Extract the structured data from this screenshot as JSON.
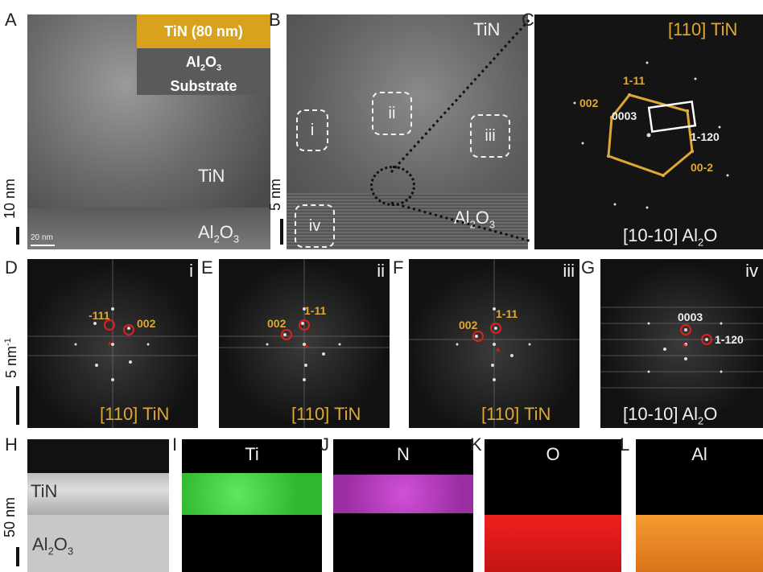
{
  "panels": {
    "A": {
      "letter": "A",
      "inset_top": "TiN (80 nm)",
      "inset_bottom_1": "Al",
      "inset_bottom_sub": "2",
      "inset_bottom_2": "O",
      "inset_bottom_sub2": "3",
      "inset_bottom_3": "Substrate",
      "tin": "TiN",
      "al": "Al",
      "al_sub": "2",
      "o": "O",
      "o_sub": "3",
      "scale_small": "20 nm",
      "scale_left": "10 nm"
    },
    "B": {
      "letter": "B",
      "tin": "TiN",
      "region_i": "i",
      "region_ii": "ii",
      "region_iii": "iii",
      "region_iv": "iv",
      "al": "Al",
      "al_sub": "2",
      "o": "O",
      "o_sub": "3",
      "scale_left": "5 nm"
    },
    "C": {
      "letter": "C",
      "zone_top": "[110] TiN",
      "zone_bottom": "[10-10] Al",
      "zone_bottom_sub": "2",
      "zone_bottom_o": "O",
      "spot_1m11": "1-11",
      "spot_002": "002",
      "spot_0003": "0003",
      "spot_1m120": "1-120",
      "spot_00m2": "00-2"
    },
    "D": {
      "letter": "D",
      "corner": "i",
      "spot_a": "-111",
      "spot_b": "002",
      "zone": "[110] TiN",
      "scale_left": "5 nm",
      "scale_sup": "-1"
    },
    "E": {
      "letter": "E",
      "corner": "ii",
      "spot_a": "002",
      "spot_b": "1-11",
      "zone": "[110] TiN"
    },
    "F": {
      "letter": "F",
      "corner": "iii",
      "spot_a": "002",
      "spot_b": "1-11",
      "zone": "[110] TiN"
    },
    "G": {
      "letter": "G",
      "corner": "iv",
      "spot_a": "0003",
      "spot_b": "1-120",
      "zone": "[10-10] Al",
      "zone_sub": "2",
      "zone_o": "O"
    },
    "H": {
      "letter": "H",
      "tin": "TiN",
      "al": "Al",
      "al_sub": "2",
      "o": "O",
      "o_sub": "3",
      "scale_left": "50 nm"
    },
    "I": {
      "letter": "I",
      "element": "Ti"
    },
    "J": {
      "letter": "J",
      "element": "N"
    },
    "K": {
      "letter": "K",
      "element": "O"
    },
    "L": {
      "letter": "L",
      "element": "Al"
    }
  },
  "colors": {
    "gold": "#e0a830",
    "tin_map": "#3ad43a",
    "n_map": "#c040c8",
    "o_map": "#e01818",
    "al_map": "#f08a20"
  }
}
